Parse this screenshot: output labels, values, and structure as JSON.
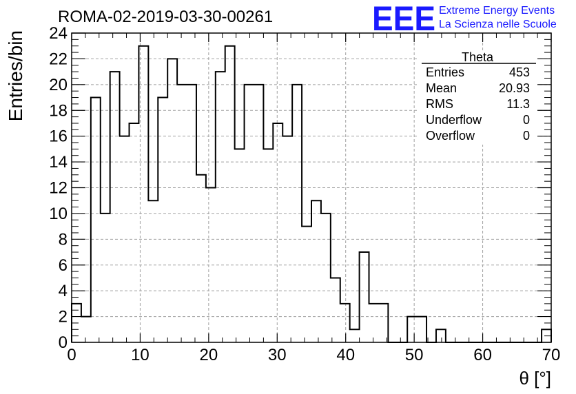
{
  "chart_data": {
    "type": "bar",
    "title": "ROMA-02-2019-03-30-00261",
    "xlabel": "θ [°]",
    "ylabel": "Entries/bin",
    "xlim": [
      0,
      70
    ],
    "ylim": [
      0,
      24
    ],
    "bin_width": 1.4,
    "grid": true,
    "x_ticks": [
      "0",
      "10",
      "20",
      "30",
      "40",
      "50",
      "60",
      "70"
    ],
    "y_ticks": [
      "0",
      "2",
      "4",
      "6",
      "8",
      "10",
      "12",
      "14",
      "16",
      "18",
      "20",
      "22",
      "24"
    ],
    "series": [
      {
        "values": [
          3,
          2,
          19,
          10,
          21,
          16,
          17,
          23,
          11,
          19,
          22,
          20,
          20,
          13,
          12,
          21,
          23,
          15,
          20,
          20,
          15,
          17,
          16,
          20,
          9,
          11,
          10,
          5,
          3,
          1,
          7,
          3,
          3,
          0,
          0,
          2,
          2,
          0,
          1,
          0,
          0,
          0,
          0,
          0,
          0,
          0,
          0,
          0,
          0,
          1
        ]
      }
    ]
  },
  "stats": {
    "title": "Theta",
    "rows": [
      {
        "label": "Entries",
        "value": "453"
      },
      {
        "label": "Mean",
        "value": "20.93"
      },
      {
        "label": "RMS",
        "value": "11.3"
      },
      {
        "label": "Underflow",
        "value": "0"
      },
      {
        "label": "Overflow",
        "value": "0"
      }
    ]
  },
  "logo": {
    "mark": "EEE",
    "line1": "Extreme Energy Events",
    "line2": "La Scienza nelle Scuole",
    "color": "#1a1aff"
  }
}
